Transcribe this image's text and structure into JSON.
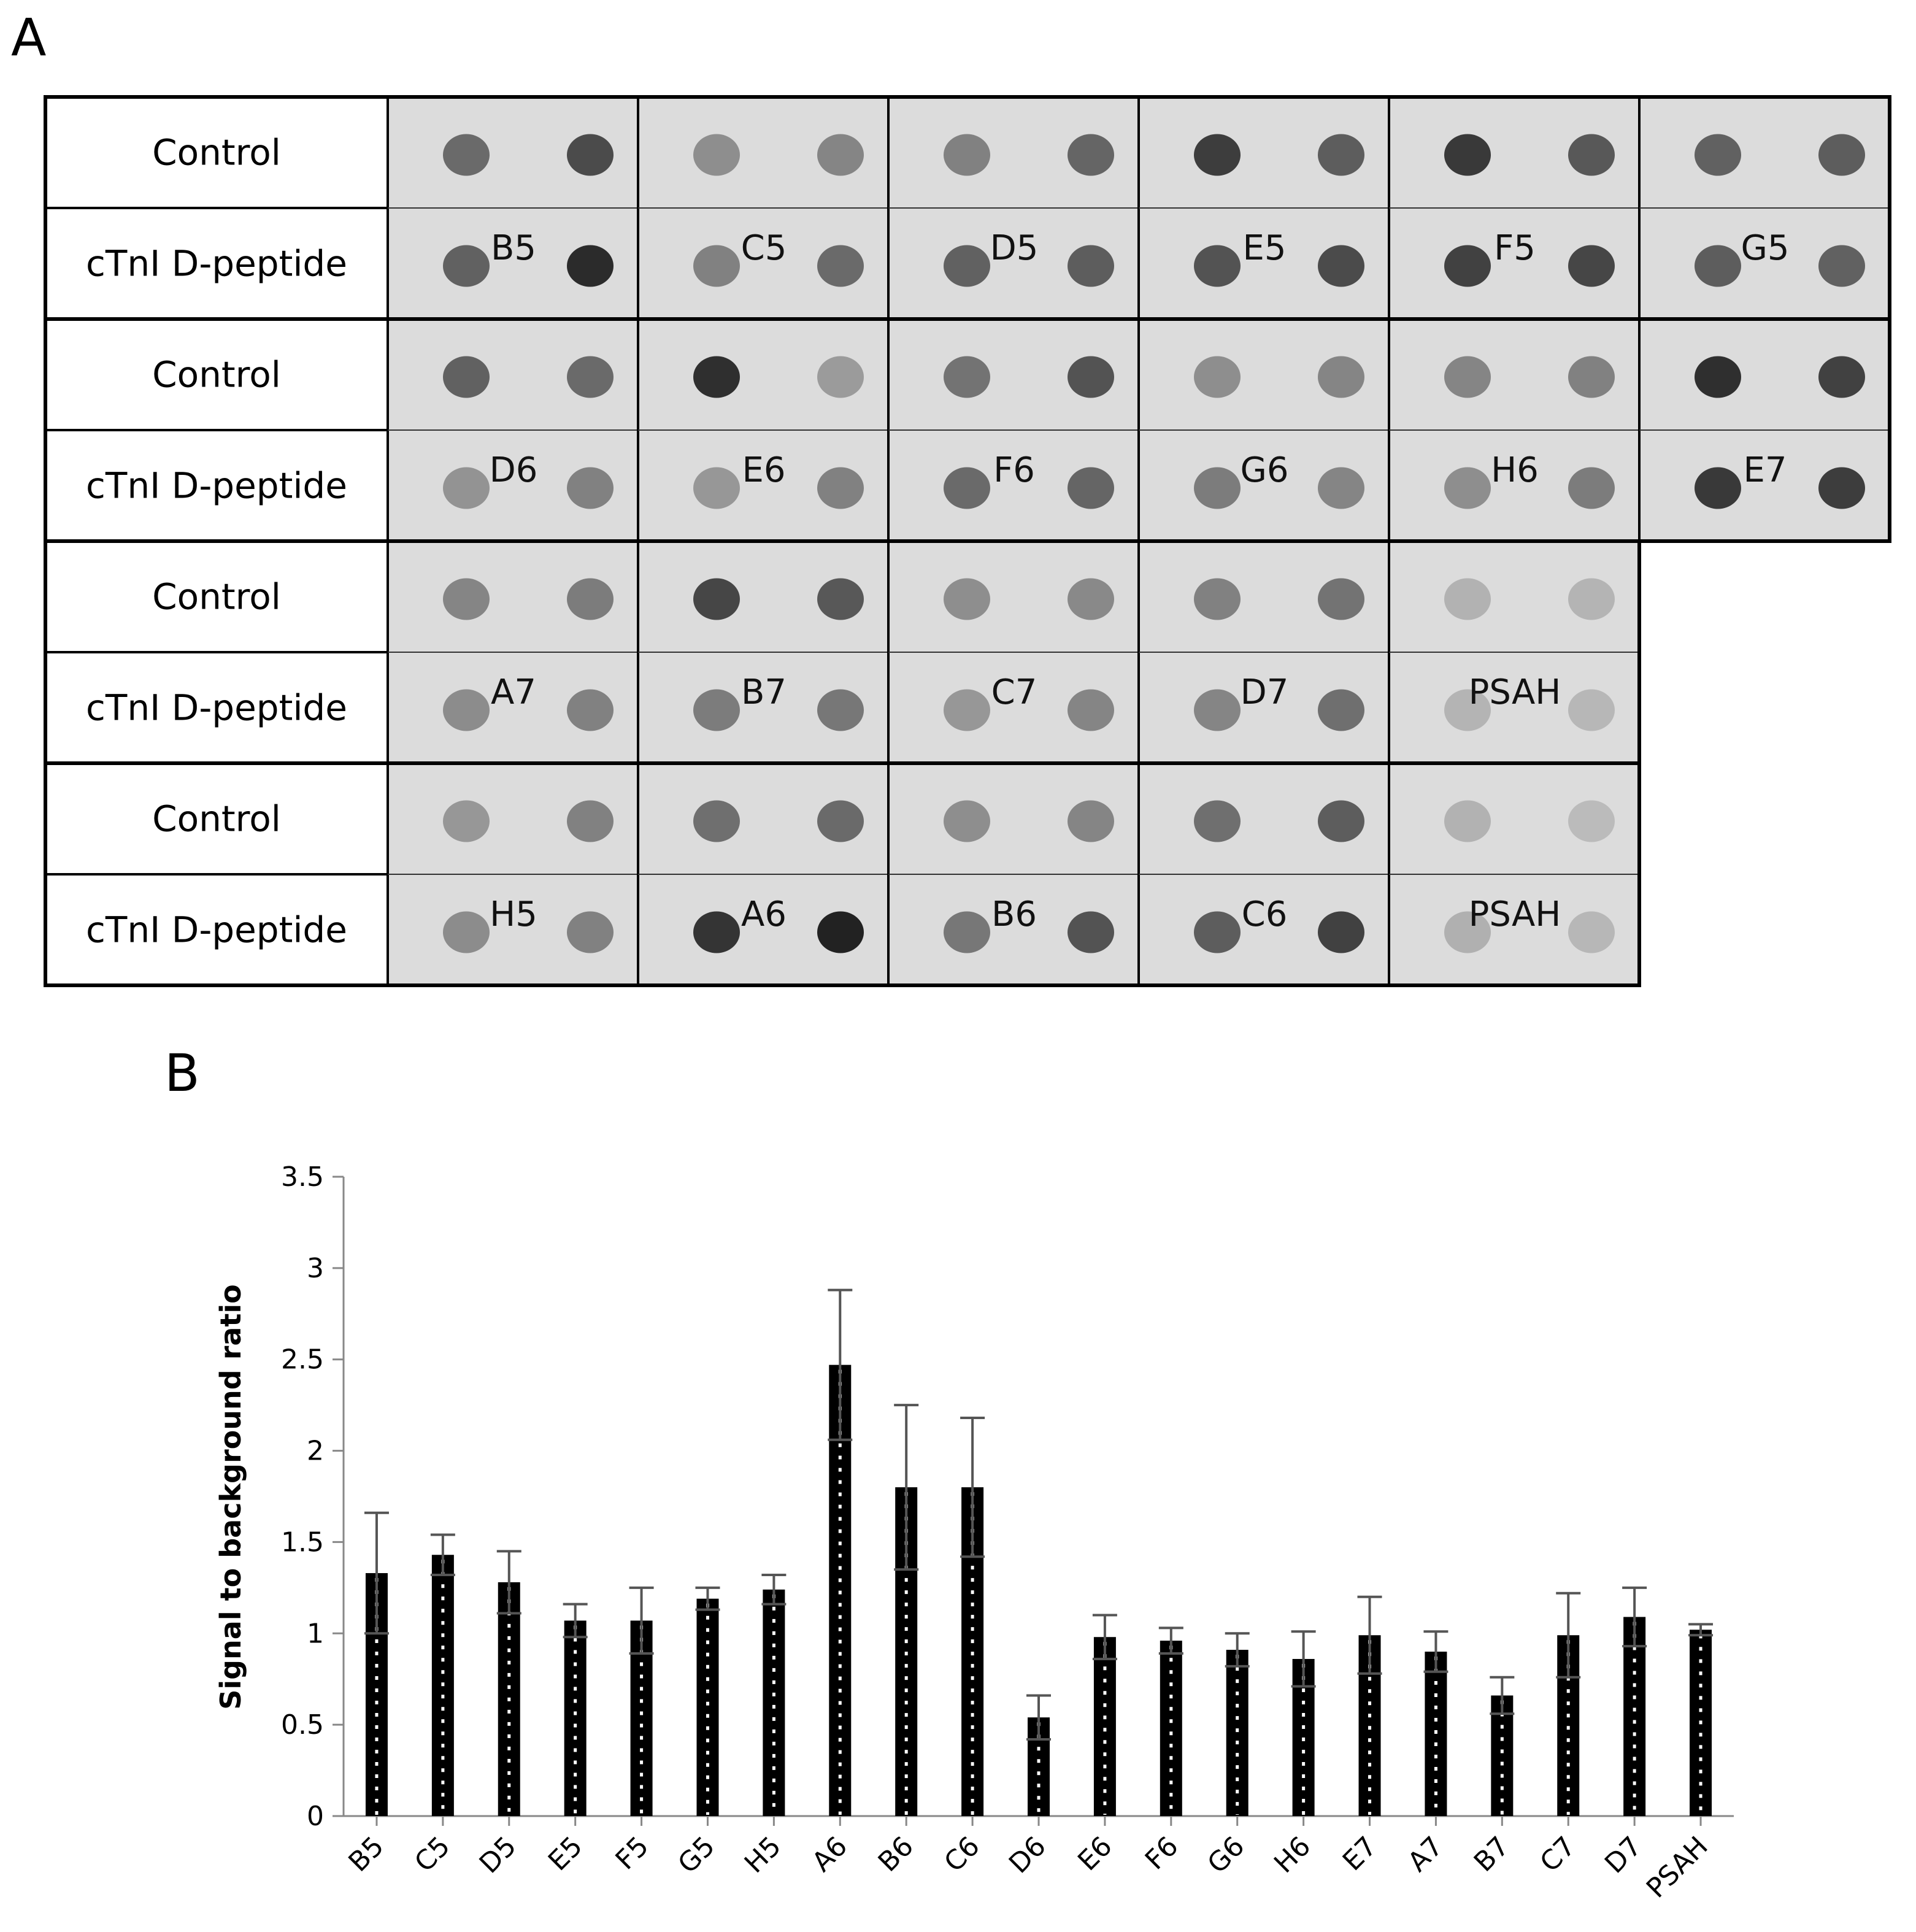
{
  "panel_a": {
    "letter": "A",
    "row_labels": [
      "Control",
      "cTnI D-peptide"
    ],
    "blocks": [
      {
        "cells": [
          {
            "label": "B5",
            "control": [
              0.55,
              0.72
            ],
            "peptide": [
              0.6,
              0.9
            ]
          },
          {
            "label": "C5",
            "control": [
              0.35,
              0.4
            ],
            "peptide": [
              0.42,
              0.55
            ]
          },
          {
            "label": "D5",
            "control": [
              0.42,
              0.58
            ],
            "peptide": [
              0.6,
              0.62
            ]
          },
          {
            "label": "E5",
            "control": [
              0.8,
              0.62
            ],
            "peptide": [
              0.68,
              0.72
            ]
          },
          {
            "label": "F5",
            "control": [
              0.82,
              0.65
            ],
            "peptide": [
              0.78,
              0.75
            ]
          },
          {
            "label": "G5",
            "control": [
              0.6,
              0.62
            ],
            "peptide": [
              0.62,
              0.6
            ]
          }
        ]
      },
      {
        "cells": [
          {
            "label": "D6",
            "control": [
              0.6,
              0.55
            ],
            "peptide": [
              0.32,
              0.42
            ]
          },
          {
            "label": "E6",
            "control": [
              0.88,
              0.28
            ],
            "peptide": [
              0.3,
              0.42
            ]
          },
          {
            "label": "F6",
            "control": [
              0.5,
              0.68
            ],
            "peptide": [
              0.55,
              0.58
            ]
          },
          {
            "label": "G6",
            "control": [
              0.35,
              0.4
            ],
            "peptide": [
              0.45,
              0.4
            ]
          },
          {
            "label": "H6",
            "control": [
              0.4,
              0.42
            ],
            "peptide": [
              0.35,
              0.45
            ]
          },
          {
            "label": "E7",
            "control": [
              0.88,
              0.78
            ],
            "peptide": [
              0.82,
              0.8
            ]
          }
        ]
      },
      {
        "cells": [
          {
            "label": "A7",
            "control": [
              0.4,
              0.45
            ],
            "peptide": [
              0.36,
              0.42
            ]
          },
          {
            "label": "B7",
            "control": [
              0.75,
              0.65
            ],
            "peptide": [
              0.45,
              0.48
            ]
          },
          {
            "label": "C7",
            "control": [
              0.35,
              0.38
            ],
            "peptide": [
              0.3,
              0.4
            ]
          },
          {
            "label": "D7",
            "control": [
              0.42,
              0.5
            ],
            "peptide": [
              0.4,
              0.52
            ]
          },
          {
            "label": "PSAH",
            "control": [
              0.15,
              0.14
            ],
            "peptide": [
              0.14,
              0.12
            ]
          }
        ]
      },
      {
        "cells": [
          {
            "label": "H5",
            "control": [
              0.3,
              0.42
            ],
            "peptide": [
              0.36,
              0.42
            ]
          },
          {
            "label": "A6",
            "control": [
              0.52,
              0.55
            ],
            "peptide": [
              0.85,
              0.95
            ]
          },
          {
            "label": "B6",
            "control": [
              0.35,
              0.4
            ],
            "peptide": [
              0.48,
              0.68
            ]
          },
          {
            "label": "C6",
            "control": [
              0.52,
              0.62
            ],
            "peptide": [
              0.62,
              0.78
            ]
          },
          {
            "label": "PSAH",
            "control": [
              0.15,
              0.1
            ],
            "peptide": [
              0.16,
              0.12
            ]
          }
        ]
      }
    ]
  },
  "panel_b": {
    "letter": "B"
  },
  "chart_data": {
    "type": "bar",
    "ylabel": "Signal to background ratio",
    "ylim": [
      0,
      3.5
    ],
    "yticks": [
      "0",
      "0.5",
      "1",
      "1.5",
      "2",
      "2.5",
      "3",
      "3.5"
    ],
    "categories": [
      "B5",
      "C5",
      "D5",
      "E5",
      "F5",
      "G5",
      "H5",
      "A6",
      "B6",
      "C6",
      "D6",
      "E6",
      "F6",
      "G6",
      "H6",
      "E7",
      "A7",
      "B7",
      "C7",
      "D7",
      "PSAH"
    ],
    "values": [
      1.33,
      1.43,
      1.28,
      1.07,
      1.07,
      1.19,
      1.24,
      2.47,
      1.8,
      1.8,
      0.54,
      0.98,
      0.96,
      0.91,
      0.86,
      0.99,
      0.9,
      0.66,
      0.99,
      1.09,
      1.02
    ],
    "errors": [
      0.33,
      0.11,
      0.17,
      0.09,
      0.18,
      0.06,
      0.08,
      0.41,
      0.45,
      0.38,
      0.12,
      0.12,
      0.07,
      0.09,
      0.15,
      0.21,
      0.11,
      0.1,
      0.23,
      0.16,
      0.03
    ],
    "colors": {
      "bar": "#000000",
      "error": "#555555",
      "dots": "#ffffff"
    }
  }
}
